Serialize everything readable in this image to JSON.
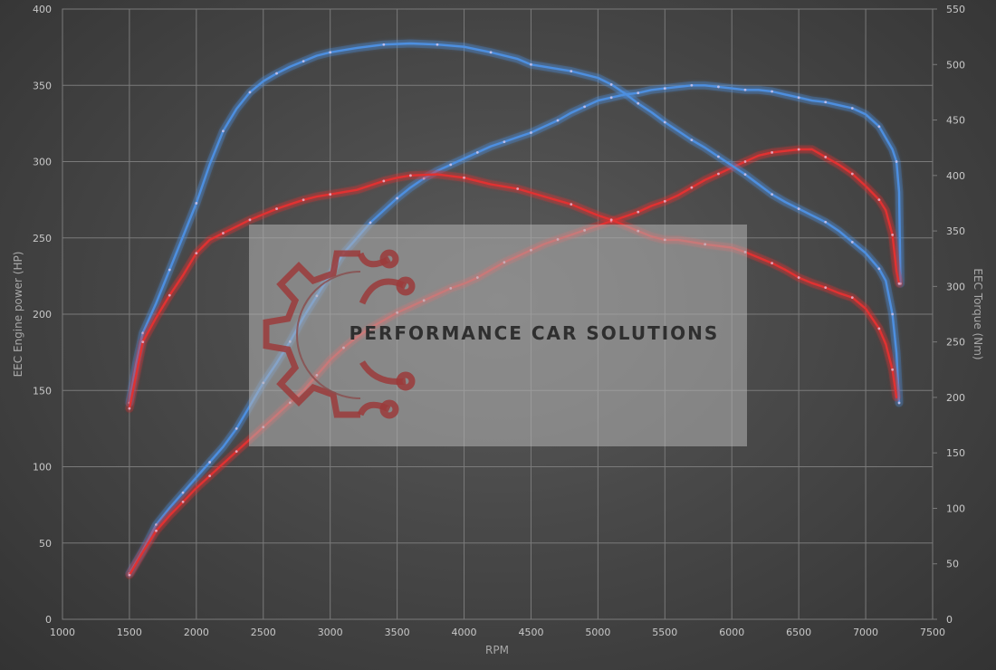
{
  "chart_data": {
    "type": "line",
    "xlabel": "RPM",
    "ylabel_left": "EEC Engine power (HP)",
    "ylabel_right": "EEC Torque (Nm)",
    "xlim": [
      1000,
      7500
    ],
    "ylim_left": [
      0,
      400
    ],
    "ylim_right": [
      0,
      550
    ],
    "x_ticks": [
      1000,
      1500,
      2000,
      2500,
      3000,
      3500,
      4000,
      4500,
      5000,
      5500,
      6000,
      6500,
      7000,
      7500
    ],
    "y_left_ticks": [
      0,
      50,
      100,
      150,
      200,
      250,
      300,
      350,
      400
    ],
    "y_right_ticks": [
      0,
      50,
      100,
      150,
      200,
      250,
      300,
      350,
      400,
      450,
      500,
      550
    ],
    "grid": true,
    "series": [
      {
        "axis": "left",
        "color": "#4d8fe0",
        "points": [
          [
            1500,
            30
          ],
          [
            1600,
            45
          ],
          [
            1700,
            62
          ],
          [
            1800,
            73
          ],
          [
            1900,
            83
          ],
          [
            2000,
            93
          ],
          [
            2100,
            103
          ],
          [
            2200,
            113
          ],
          [
            2300,
            125
          ],
          [
            2400,
            140
          ],
          [
            2500,
            155
          ],
          [
            2600,
            168
          ],
          [
            2700,
            182
          ],
          [
            2800,
            198
          ],
          [
            2900,
            212
          ],
          [
            3000,
            226
          ],
          [
            3100,
            240
          ],
          [
            3200,
            250
          ],
          [
            3300,
            260
          ],
          [
            3400,
            268
          ],
          [
            3500,
            276
          ],
          [
            3600,
            283
          ],
          [
            3700,
            289
          ],
          [
            3800,
            294
          ],
          [
            3900,
            298
          ],
          [
            4000,
            302
          ],
          [
            4100,
            306
          ],
          [
            4200,
            310
          ],
          [
            4300,
            313
          ],
          [
            4400,
            316
          ],
          [
            4500,
            319
          ],
          [
            4600,
            323
          ],
          [
            4700,
            327
          ],
          [
            4800,
            332
          ],
          [
            4900,
            336
          ],
          [
            5000,
            340
          ],
          [
            5100,
            342
          ],
          [
            5200,
            344
          ],
          [
            5300,
            345
          ],
          [
            5400,
            347
          ],
          [
            5500,
            348
          ],
          [
            5600,
            349
          ],
          [
            5700,
            350
          ],
          [
            5800,
            350
          ],
          [
            5900,
            349
          ],
          [
            6000,
            348
          ],
          [
            6100,
            347
          ],
          [
            6200,
            347
          ],
          [
            6300,
            346
          ],
          [
            6400,
            344
          ],
          [
            6500,
            342
          ],
          [
            6600,
            340
          ],
          [
            6700,
            339
          ],
          [
            6800,
            337
          ],
          [
            6900,
            335
          ],
          [
            7000,
            331
          ],
          [
            7100,
            323
          ],
          [
            7200,
            308
          ],
          [
            7230,
            300
          ],
          [
            7250,
            280
          ],
          [
            7260,
            220
          ]
        ]
      },
      {
        "axis": "left",
        "color": "#e03030",
        "points": [
          [
            1500,
            29
          ],
          [
            1600,
            44
          ],
          [
            1700,
            58
          ],
          [
            1800,
            68
          ],
          [
            1900,
            77
          ],
          [
            2000,
            86
          ],
          [
            2100,
            94
          ],
          [
            2200,
            102
          ],
          [
            2300,
            110
          ],
          [
            2400,
            118
          ],
          [
            2500,
            126
          ],
          [
            2600,
            134
          ],
          [
            2700,
            142
          ],
          [
            2800,
            150
          ],
          [
            2900,
            160
          ],
          [
            3000,
            170
          ],
          [
            3100,
            178
          ],
          [
            3200,
            185
          ],
          [
            3300,
            191
          ],
          [
            3400,
            196
          ],
          [
            3500,
            201
          ],
          [
            3600,
            205
          ],
          [
            3700,
            209
          ],
          [
            3800,
            213
          ],
          [
            3900,
            217
          ],
          [
            4000,
            220
          ],
          [
            4100,
            224
          ],
          [
            4200,
            229
          ],
          [
            4300,
            234
          ],
          [
            4400,
            238
          ],
          [
            4500,
            242
          ],
          [
            4600,
            246
          ],
          [
            4700,
            249
          ],
          [
            4800,
            252
          ],
          [
            4900,
            255
          ],
          [
            5000,
            258
          ],
          [
            5100,
            261
          ],
          [
            5200,
            264
          ],
          [
            5300,
            267
          ],
          [
            5400,
            271
          ],
          [
            5500,
            274
          ],
          [
            5600,
            278
          ],
          [
            5700,
            283
          ],
          [
            5800,
            288
          ],
          [
            5900,
            292
          ],
          [
            6000,
            296
          ],
          [
            6100,
            300
          ],
          [
            6200,
            304
          ],
          [
            6300,
            306
          ],
          [
            6400,
            307
          ],
          [
            6500,
            308
          ],
          [
            6600,
            308
          ],
          [
            6700,
            303
          ],
          [
            6800,
            298
          ],
          [
            6900,
            292
          ],
          [
            7000,
            284
          ],
          [
            7100,
            275
          ],
          [
            7150,
            268
          ],
          [
            7200,
            252
          ],
          [
            7230,
            228
          ],
          [
            7250,
            220
          ]
        ]
      },
      {
        "axis": "right",
        "color": "#4d8fe0",
        "points": [
          [
            1500,
            195
          ],
          [
            1550,
            230
          ],
          [
            1600,
            258
          ],
          [
            1700,
            285
          ],
          [
            1800,
            315
          ],
          [
            1900,
            345
          ],
          [
            2000,
            375
          ],
          [
            2100,
            410
          ],
          [
            2200,
            440
          ],
          [
            2300,
            460
          ],
          [
            2400,
            475
          ],
          [
            2500,
            485
          ],
          [
            2600,
            492
          ],
          [
            2700,
            498
          ],
          [
            2800,
            503
          ],
          [
            2900,
            508
          ],
          [
            3000,
            511
          ],
          [
            3200,
            515
          ],
          [
            3400,
            518
          ],
          [
            3600,
            519
          ],
          [
            3800,
            518
          ],
          [
            4000,
            516
          ],
          [
            4200,
            511
          ],
          [
            4400,
            505
          ],
          [
            4500,
            500
          ],
          [
            4600,
            498
          ],
          [
            4800,
            494
          ],
          [
            5000,
            488
          ],
          [
            5100,
            482
          ],
          [
            5200,
            474
          ],
          [
            5300,
            465
          ],
          [
            5400,
            457
          ],
          [
            5500,
            448
          ],
          [
            5600,
            440
          ],
          [
            5700,
            432
          ],
          [
            5800,
            425
          ],
          [
            5900,
            417
          ],
          [
            6000,
            409
          ],
          [
            6100,
            401
          ],
          [
            6200,
            392
          ],
          [
            6300,
            383
          ],
          [
            6400,
            376
          ],
          [
            6500,
            370
          ],
          [
            6600,
            364
          ],
          [
            6700,
            358
          ],
          [
            6800,
            350
          ],
          [
            6900,
            340
          ],
          [
            7000,
            330
          ],
          [
            7100,
            316
          ],
          [
            7150,
            305
          ],
          [
            7200,
            275
          ],
          [
            7230,
            240
          ],
          [
            7250,
            195
          ]
        ]
      },
      {
        "axis": "right",
        "color": "#e03030",
        "points": [
          [
            1500,
            190
          ],
          [
            1550,
            220
          ],
          [
            1600,
            250
          ],
          [
            1700,
            272
          ],
          [
            1800,
            292
          ],
          [
            1900,
            310
          ],
          [
            2000,
            330
          ],
          [
            2100,
            342
          ],
          [
            2200,
            348
          ],
          [
            2300,
            354
          ],
          [
            2400,
            360
          ],
          [
            2500,
            365
          ],
          [
            2600,
            370
          ],
          [
            2700,
            374
          ],
          [
            2800,
            378
          ],
          [
            2900,
            381
          ],
          [
            3000,
            383
          ],
          [
            3200,
            387
          ],
          [
            3400,
            395
          ],
          [
            3500,
            398
          ],
          [
            3600,
            400
          ],
          [
            3800,
            401
          ],
          [
            4000,
            398
          ],
          [
            4200,
            392
          ],
          [
            4400,
            388
          ],
          [
            4600,
            381
          ],
          [
            4800,
            374
          ],
          [
            5000,
            364
          ],
          [
            5100,
            360
          ],
          [
            5200,
            355
          ],
          [
            5300,
            350
          ],
          [
            5400,
            345
          ],
          [
            5500,
            342
          ],
          [
            5600,
            342
          ],
          [
            5800,
            338
          ],
          [
            6000,
            335
          ],
          [
            6100,
            331
          ],
          [
            6200,
            326
          ],
          [
            6300,
            321
          ],
          [
            6400,
            315
          ],
          [
            6500,
            308
          ],
          [
            6600,
            303
          ],
          [
            6700,
            299
          ],
          [
            6800,
            294
          ],
          [
            6900,
            290
          ],
          [
            7000,
            280
          ],
          [
            7100,
            262
          ],
          [
            7150,
            248
          ],
          [
            7200,
            225
          ],
          [
            7230,
            200
          ]
        ]
      }
    ]
  },
  "watermark": {
    "brand_text": "PERFORMANCE CAR SOLUTIONS",
    "logo_icon": "gear-circuit-logo"
  }
}
